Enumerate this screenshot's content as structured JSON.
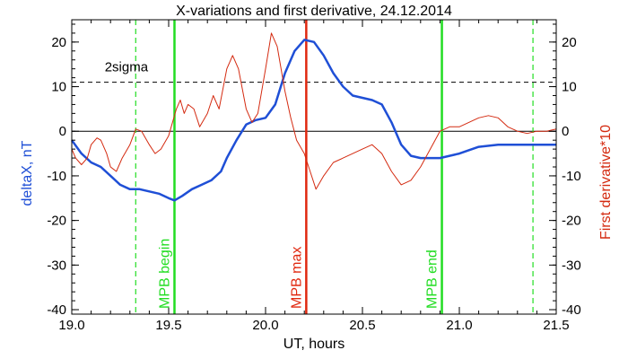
{
  "chart_data": {
    "type": "line",
    "title": "X-variations and first derivative, 24.12.2014",
    "xlabel": "UT, hours",
    "ylabel_left": "deltaX, nT",
    "ylabel_right": "First derivative*10",
    "xlim": [
      19.0,
      21.5
    ],
    "ylim": [
      -41,
      25
    ],
    "x_ticks": [
      19.0,
      19.5,
      20.0,
      20.5,
      21.0,
      21.5
    ],
    "x_tick_labels": [
      "19.0",
      "19.5",
      "20.0",
      "20.5",
      "21.0",
      "21.5"
    ],
    "y_ticks": [
      20,
      10,
      0,
      -10,
      -20,
      -30,
      -40
    ],
    "y_tick_labels": [
      "20",
      "10",
      "0",
      "-10",
      "-20",
      "-30",
      "-40"
    ],
    "grid": false,
    "colors": {
      "deltaX": "#1f4fd6",
      "derivative": "#d42a10",
      "mpb_lines": "#22dd22",
      "mpb_max": "#e02810",
      "axis": "#000000"
    },
    "series": [
      {
        "key": "deltaX",
        "axis": "left",
        "x": [
          19.0,
          19.05,
          19.1,
          19.15,
          19.2,
          19.25,
          19.3,
          19.35,
          19.4,
          19.45,
          19.5,
          19.53,
          19.57,
          19.62,
          19.67,
          19.72,
          19.77,
          19.8,
          19.85,
          19.9,
          19.95,
          20.0,
          20.05,
          20.1,
          20.15,
          20.2,
          20.25,
          20.3,
          20.35,
          20.4,
          20.45,
          20.5,
          20.55,
          20.6,
          20.65,
          20.7,
          20.75,
          20.8,
          20.85,
          20.9,
          20.95,
          21.0,
          21.1,
          21.2,
          21.3,
          21.4,
          21.5
        ],
        "values": [
          -2,
          -5,
          -7,
          -8,
          -10,
          -12,
          -13,
          -13,
          -13.5,
          -14,
          -15,
          -15.5,
          -14.5,
          -13,
          -12,
          -11,
          -9,
          -6,
          -2,
          1.5,
          2.5,
          3,
          6,
          13,
          18,
          20.5,
          20,
          17,
          13,
          10,
          8,
          7.5,
          7,
          6,
          2,
          -3,
          -5.5,
          -6,
          -6,
          -6,
          -5.5,
          -5,
          -3.5,
          -3,
          -3,
          -3,
          -3
        ]
      },
      {
        "key": "derivative",
        "axis": "right",
        "x": [
          19.0,
          19.02,
          19.05,
          19.08,
          19.1,
          19.13,
          19.15,
          19.18,
          19.2,
          19.23,
          19.26,
          19.3,
          19.33,
          19.36,
          19.4,
          19.43,
          19.46,
          19.5,
          19.52,
          19.54,
          19.56,
          19.58,
          19.6,
          19.63,
          19.66,
          19.7,
          19.73,
          19.76,
          19.8,
          19.83,
          19.86,
          19.9,
          19.93,
          19.96,
          20.0,
          20.03,
          20.06,
          20.1,
          20.13,
          20.16,
          20.2,
          20.23,
          20.26,
          20.3,
          20.35,
          20.4,
          20.45,
          20.5,
          20.55,
          20.6,
          20.65,
          20.7,
          20.75,
          20.8,
          20.85,
          20.9,
          20.95,
          21.0,
          21.05,
          21.1,
          21.15,
          21.2,
          21.25,
          21.3,
          21.35,
          21.4,
          21.45,
          21.5
        ],
        "values": [
          -4,
          -6,
          -7.5,
          -6,
          -3,
          -1.5,
          -2,
          -5,
          -8,
          -9,
          -6,
          -3,
          0.5,
          0,
          -3,
          -5,
          -4,
          -1,
          2,
          5,
          7,
          4,
          6,
          5,
          1,
          4,
          8,
          5,
          14,
          17,
          14,
          5,
          2,
          4,
          14,
          22,
          19,
          9,
          3,
          -2,
          -5,
          -9,
          -13,
          -10,
          -7,
          -6,
          -5,
          -4,
          -3,
          -5,
          -9,
          -12,
          -11,
          -8,
          -4,
          0,
          1,
          1,
          2,
          3,
          3.5,
          3,
          1,
          0,
          -0.5,
          0,
          0,
          0.5
        ]
      }
    ],
    "reference_lines": [
      {
        "key": "zero",
        "y": 0,
        "style": "solid",
        "label": ""
      },
      {
        "key": "two-sigma",
        "y": 11,
        "style": "dashed",
        "label": "2sigma"
      }
    ],
    "vertical_lines": [
      {
        "key": "dashed-left",
        "x": 19.33,
        "style": "dashed",
        "color": "#22dd22",
        "label": ""
      },
      {
        "key": "mpb-begin",
        "x": 19.53,
        "style": "solid",
        "color": "#22dd22",
        "label": "MPB begin"
      },
      {
        "key": "mpb-max",
        "x": 20.21,
        "style": "solid",
        "color": "#e02810",
        "label": "MPB max"
      },
      {
        "key": "mpb-end",
        "x": 20.91,
        "style": "solid",
        "color": "#22dd22",
        "label": "MPB end"
      },
      {
        "key": "dashed-right",
        "x": 21.38,
        "style": "dashed",
        "color": "#22dd22",
        "label": ""
      }
    ]
  }
}
